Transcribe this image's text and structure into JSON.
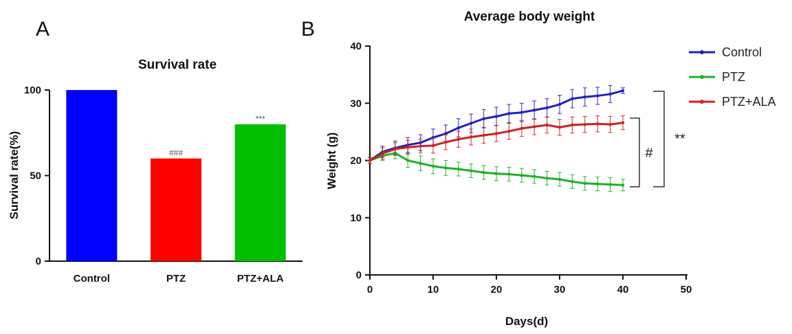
{
  "panels": [
    {
      "letter": "A"
    },
    {
      "letter": "B"
    }
  ],
  "chart_data": [
    {
      "type": "bar",
      "title": "Survival rate",
      "xlabel": "",
      "ylabel": "Survival rate(%)",
      "categories": [
        "Control",
        "PTZ",
        "PTZ+ALA"
      ],
      "values": [
        100,
        60,
        80
      ],
      "colors": [
        "#0000ff",
        "#ff0000",
        "#00c000"
      ],
      "annotations": [
        "",
        "###",
        "***"
      ],
      "ylim": [
        0,
        100
      ],
      "yticks": [
        0,
        50,
        100
      ],
      "grid": false,
      "legend": "none"
    },
    {
      "type": "line",
      "title": "Average body weight",
      "xlabel": "Days(d)",
      "ylabel": "Weight (g)",
      "xlim": [
        0,
        50
      ],
      "ylim": [
        0,
        40
      ],
      "xticks": [
        0,
        10,
        20,
        30,
        40,
        50
      ],
      "yticks": [
        0,
        10,
        20,
        30,
        40
      ],
      "grid": false,
      "legend": "top-right",
      "series": [
        {
          "name": "Control",
          "color": "#2020c0",
          "x": [
            0,
            2,
            4,
            6,
            8,
            10,
            12,
            14,
            16,
            18,
            20,
            22,
            24,
            26,
            28,
            30,
            32,
            34,
            36,
            38,
            40
          ],
          "y": [
            20.0,
            21.5,
            22.2,
            22.7,
            23.1,
            24.0,
            24.7,
            25.7,
            26.5,
            27.3,
            27.7,
            28.2,
            28.4,
            28.8,
            29.2,
            29.8,
            30.8,
            31.1,
            31.3,
            31.6,
            32.2
          ],
          "err": [
            0.5,
            1.0,
            1.2,
            1.3,
            1.4,
            1.5,
            1.5,
            1.6,
            1.6,
            1.6,
            1.6,
            1.6,
            1.6,
            1.6,
            1.6,
            1.6,
            1.6,
            1.6,
            1.5,
            1.5,
            0.5
          ]
        },
        {
          "name": "PTZ",
          "color": "#20b020",
          "x": [
            0,
            2,
            4,
            6,
            8,
            10,
            12,
            14,
            16,
            18,
            20,
            22,
            24,
            26,
            28,
            30,
            32,
            34,
            36,
            38,
            40
          ],
          "y": [
            20.0,
            20.8,
            21.3,
            20.0,
            19.5,
            19.0,
            18.7,
            18.5,
            18.2,
            17.9,
            17.7,
            17.6,
            17.4,
            17.2,
            16.9,
            16.7,
            16.3,
            16.0,
            15.9,
            15.8,
            15.7
          ],
          "err": [
            0.5,
            0.8,
            1.0,
            1.2,
            1.3,
            1.3,
            1.3,
            1.2,
            1.2,
            1.2,
            1.2,
            1.2,
            1.2,
            1.2,
            1.2,
            1.2,
            1.2,
            1.2,
            1.2,
            1.2,
            1.0
          ]
        },
        {
          "name": "PTZ+ALA",
          "color": "#d02020",
          "x": [
            0,
            2,
            4,
            6,
            8,
            10,
            12,
            14,
            16,
            18,
            20,
            22,
            24,
            26,
            28,
            30,
            32,
            34,
            36,
            38,
            40
          ],
          "y": [
            20.0,
            21.2,
            22.0,
            22.3,
            22.5,
            22.6,
            23.2,
            23.7,
            24.1,
            24.4,
            24.7,
            25.1,
            25.6,
            25.9,
            26.2,
            25.8,
            26.2,
            26.3,
            26.4,
            26.3,
            26.6
          ],
          "err": [
            0.5,
            1.0,
            1.1,
            1.2,
            1.2,
            1.3,
            1.3,
            1.4,
            1.4,
            1.4,
            1.4,
            1.4,
            1.4,
            1.4,
            1.4,
            1.4,
            1.4,
            1.4,
            1.4,
            1.4,
            1.2
          ]
        }
      ],
      "brackets": [
        {
          "label": "#"
        },
        {
          "label": "**"
        }
      ]
    }
  ]
}
